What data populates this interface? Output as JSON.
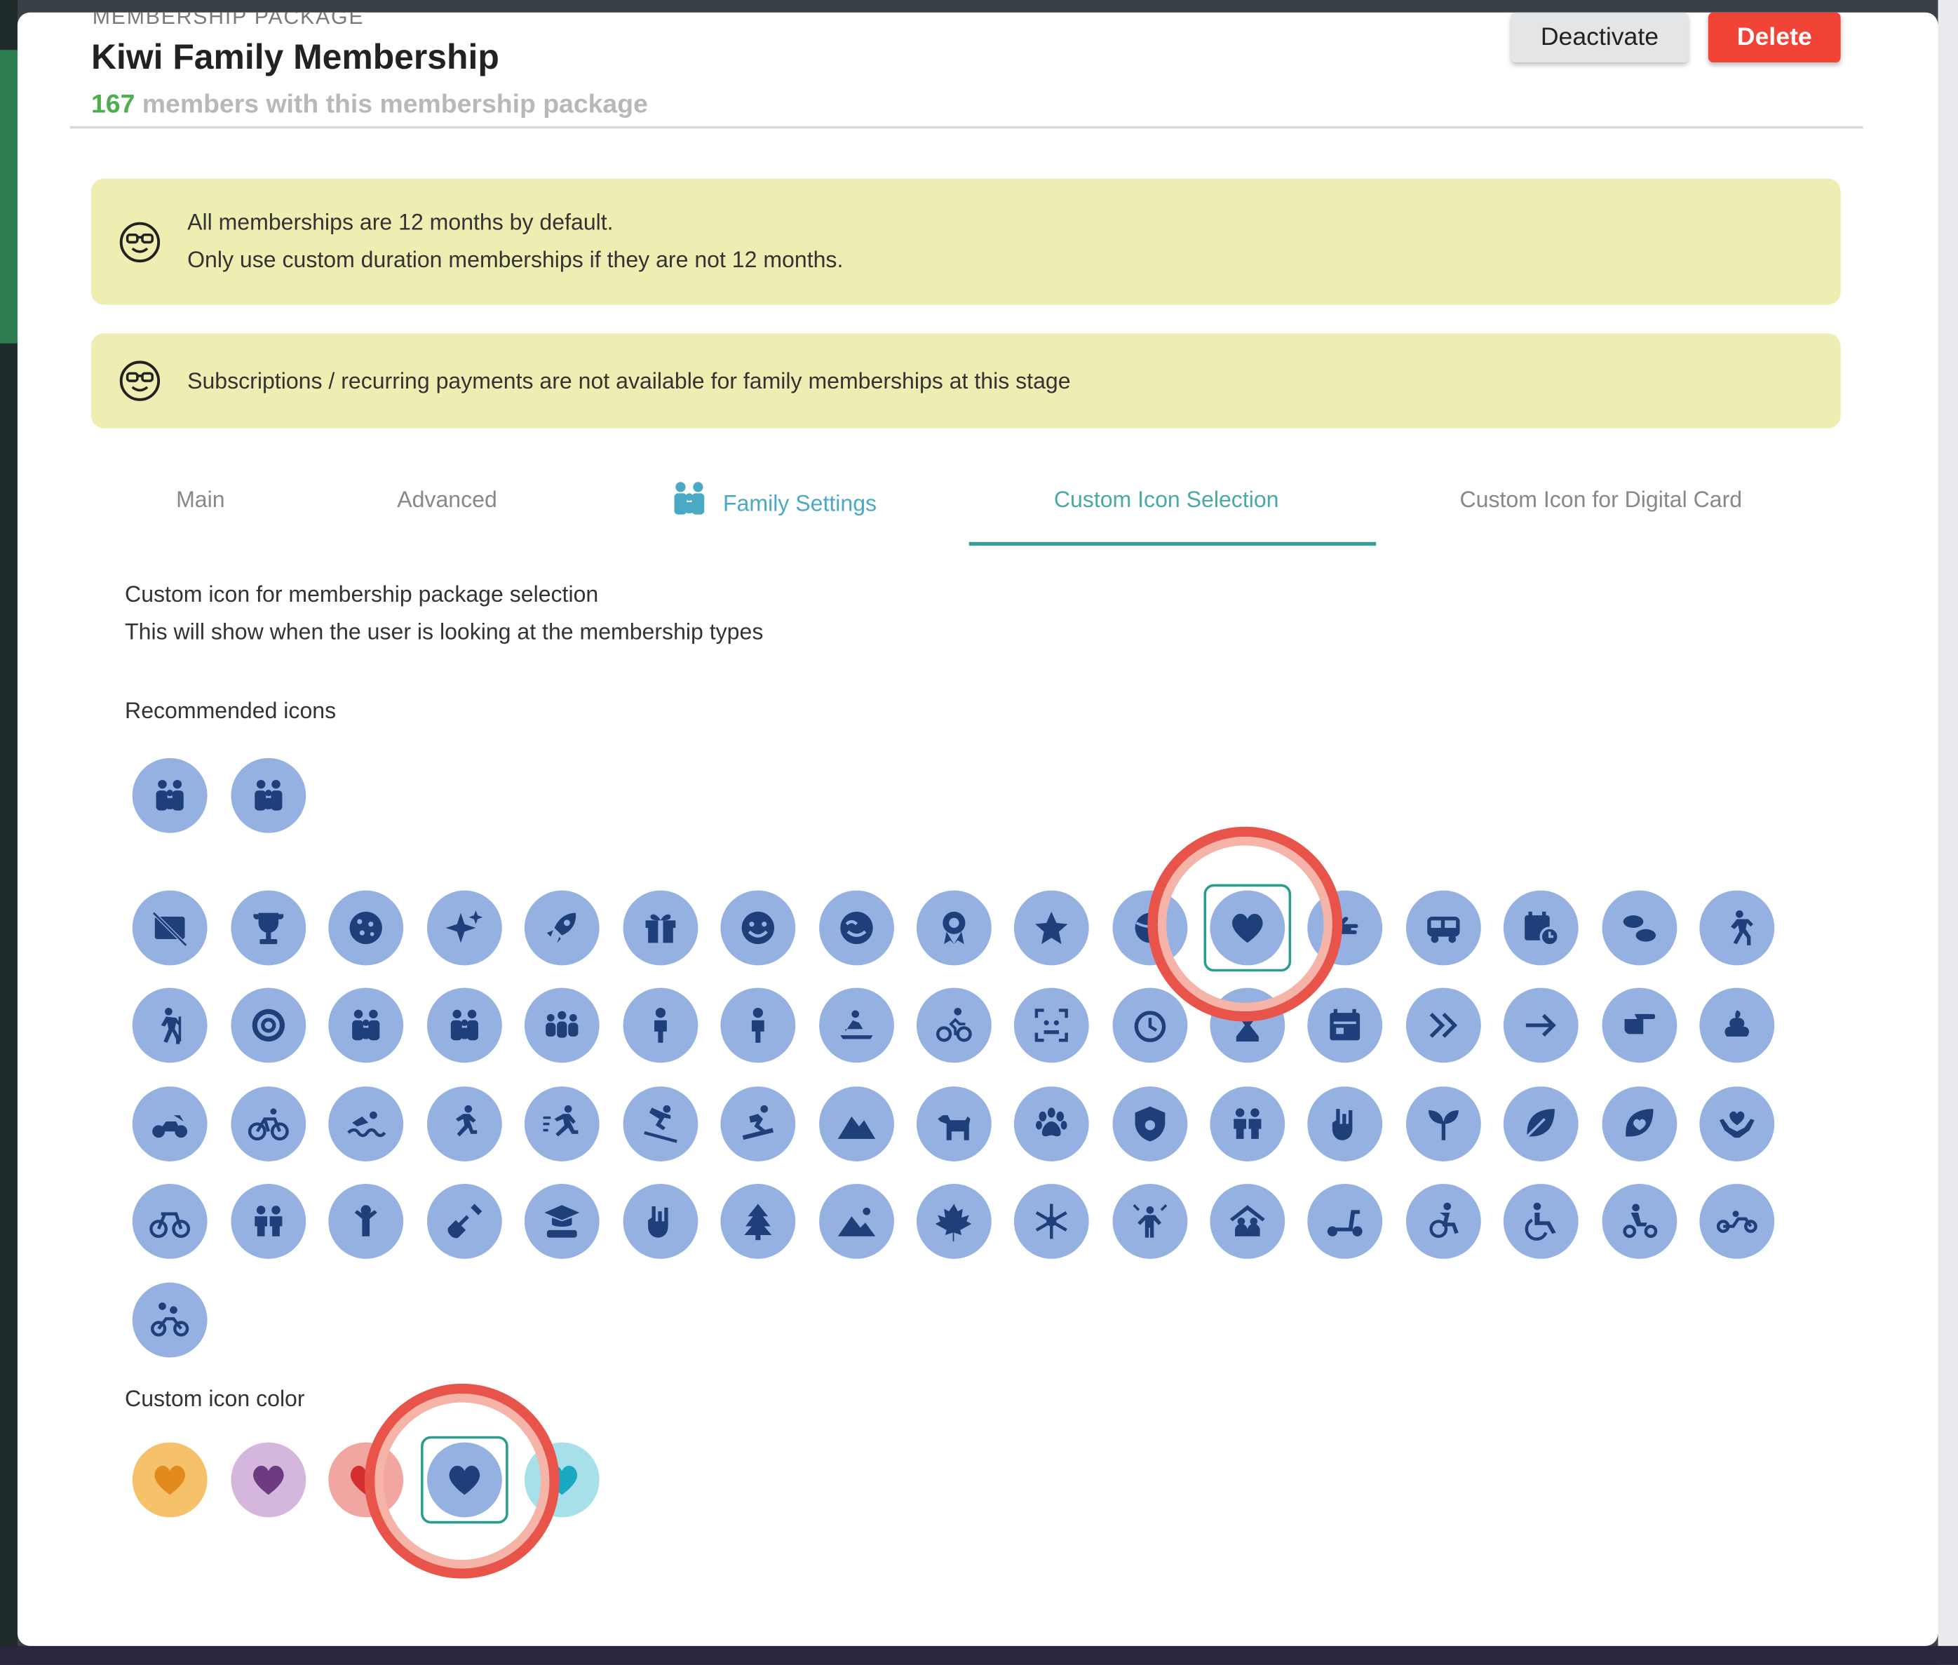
{
  "header": {
    "eyebrow": "MEMBERSHIP PACKAGE",
    "title": "Kiwi Family Membership",
    "member_count": "167",
    "member_suffix": " members with this membership package",
    "deactivate_label": "Deactivate",
    "delete_label": "Delete"
  },
  "notices": [
    {
      "lines": [
        "All memberships are 12 months by default.",
        "Only use custom duration memberships if they are not 12 months."
      ]
    },
    {
      "lines": [
        "Subscriptions / recurring payments are not available for family memberships at this stage"
      ]
    }
  ],
  "tabs": [
    {
      "label": "Main"
    },
    {
      "label": "Advanced"
    },
    {
      "label": "Family Settings"
    },
    {
      "label": "Custom Icon Selection",
      "active": true
    },
    {
      "label": "Custom Icon for Digital Card"
    }
  ],
  "content": {
    "intro_line1": "Custom icon for membership package selection",
    "intro_line2": "This will show when the user is looking at the membership types",
    "recommended_label": "Recommended icons",
    "custom_color_label": "Custom icon color"
  },
  "recommended_icons": [
    "family-icon",
    "family-icon"
  ],
  "icon_grid": [
    [
      "no-photo-icon",
      "trophy-icon",
      "cookie-icon",
      "sparkle-icon",
      "rocket-icon",
      "gift-icon",
      "smiley-icon",
      "face-icon",
      "award-icon",
      "star-icon",
      "sport-icon",
      "heart-icon",
      "hand-icon",
      "bus-icon",
      "calendar-clock-icon",
      "footprints-icon",
      "walking-icon"
    ],
    [
      "hiking-icon",
      "target-icon",
      "family-icon",
      "family-icon",
      "group-icon",
      "person-icon",
      "person-icon",
      "sledding-icon",
      "cycling-icon",
      "face-scan-icon",
      "timer-icon",
      "hourglass-icon",
      "calendar-icon",
      "double-chevron-icon",
      "arrow-right-icon",
      "pointing-hand-icon",
      "poop-icon"
    ],
    [
      "motorbike-icon",
      "bicycle-icon",
      "swimming-icon",
      "running-icon",
      "sprint-icon",
      "skiing-icon",
      "snowboarding-icon",
      "mountain-icon",
      "dog-icon",
      "paw-icon",
      "shield-pet-icon",
      "couple-icon",
      "rock-hand-icon",
      "sprout-icon",
      "leaf-icon",
      "heart-leaf-icon",
      "hands-heart-icon"
    ],
    [
      "bike-icon",
      "couple-icon",
      "child-icon",
      "shovel-icon",
      "graduate-icon",
      "rock-hand-icon",
      "tree-icon",
      "landscape-icon",
      "maple-leaf-icon",
      "snowflake-icon",
      "celebrate-icon",
      "home-group-icon",
      "scooter-icon",
      "accessible-forward-icon",
      "accessible-icon",
      "mobility-icon",
      "trike-icon"
    ],
    [
      "tandem-icon"
    ]
  ],
  "selected_icon": "heart-icon",
  "colors": [
    {
      "name": "orange",
      "bg": "#f6c16b",
      "fg": "#e38a1e"
    },
    {
      "name": "purple",
      "bg": "#d5b7dd",
      "fg": "#6e3a82"
    },
    {
      "name": "red",
      "bg": "#f2a6a2",
      "fg": "#d32f2f"
    },
    {
      "name": "blue",
      "bg": "#94b1e1",
      "fg": "#1f3f7a",
      "selected": true
    },
    {
      "name": "teal",
      "bg": "#a7e0e8",
      "fg": "#1aa9c2"
    }
  ],
  "theme": {
    "icon_bg": "#94b1e1",
    "icon_fg": "#1f3f7a",
    "accent": "#3a9b97",
    "notice_bg": "#efeeb2",
    "delete": "#f14436"
  }
}
